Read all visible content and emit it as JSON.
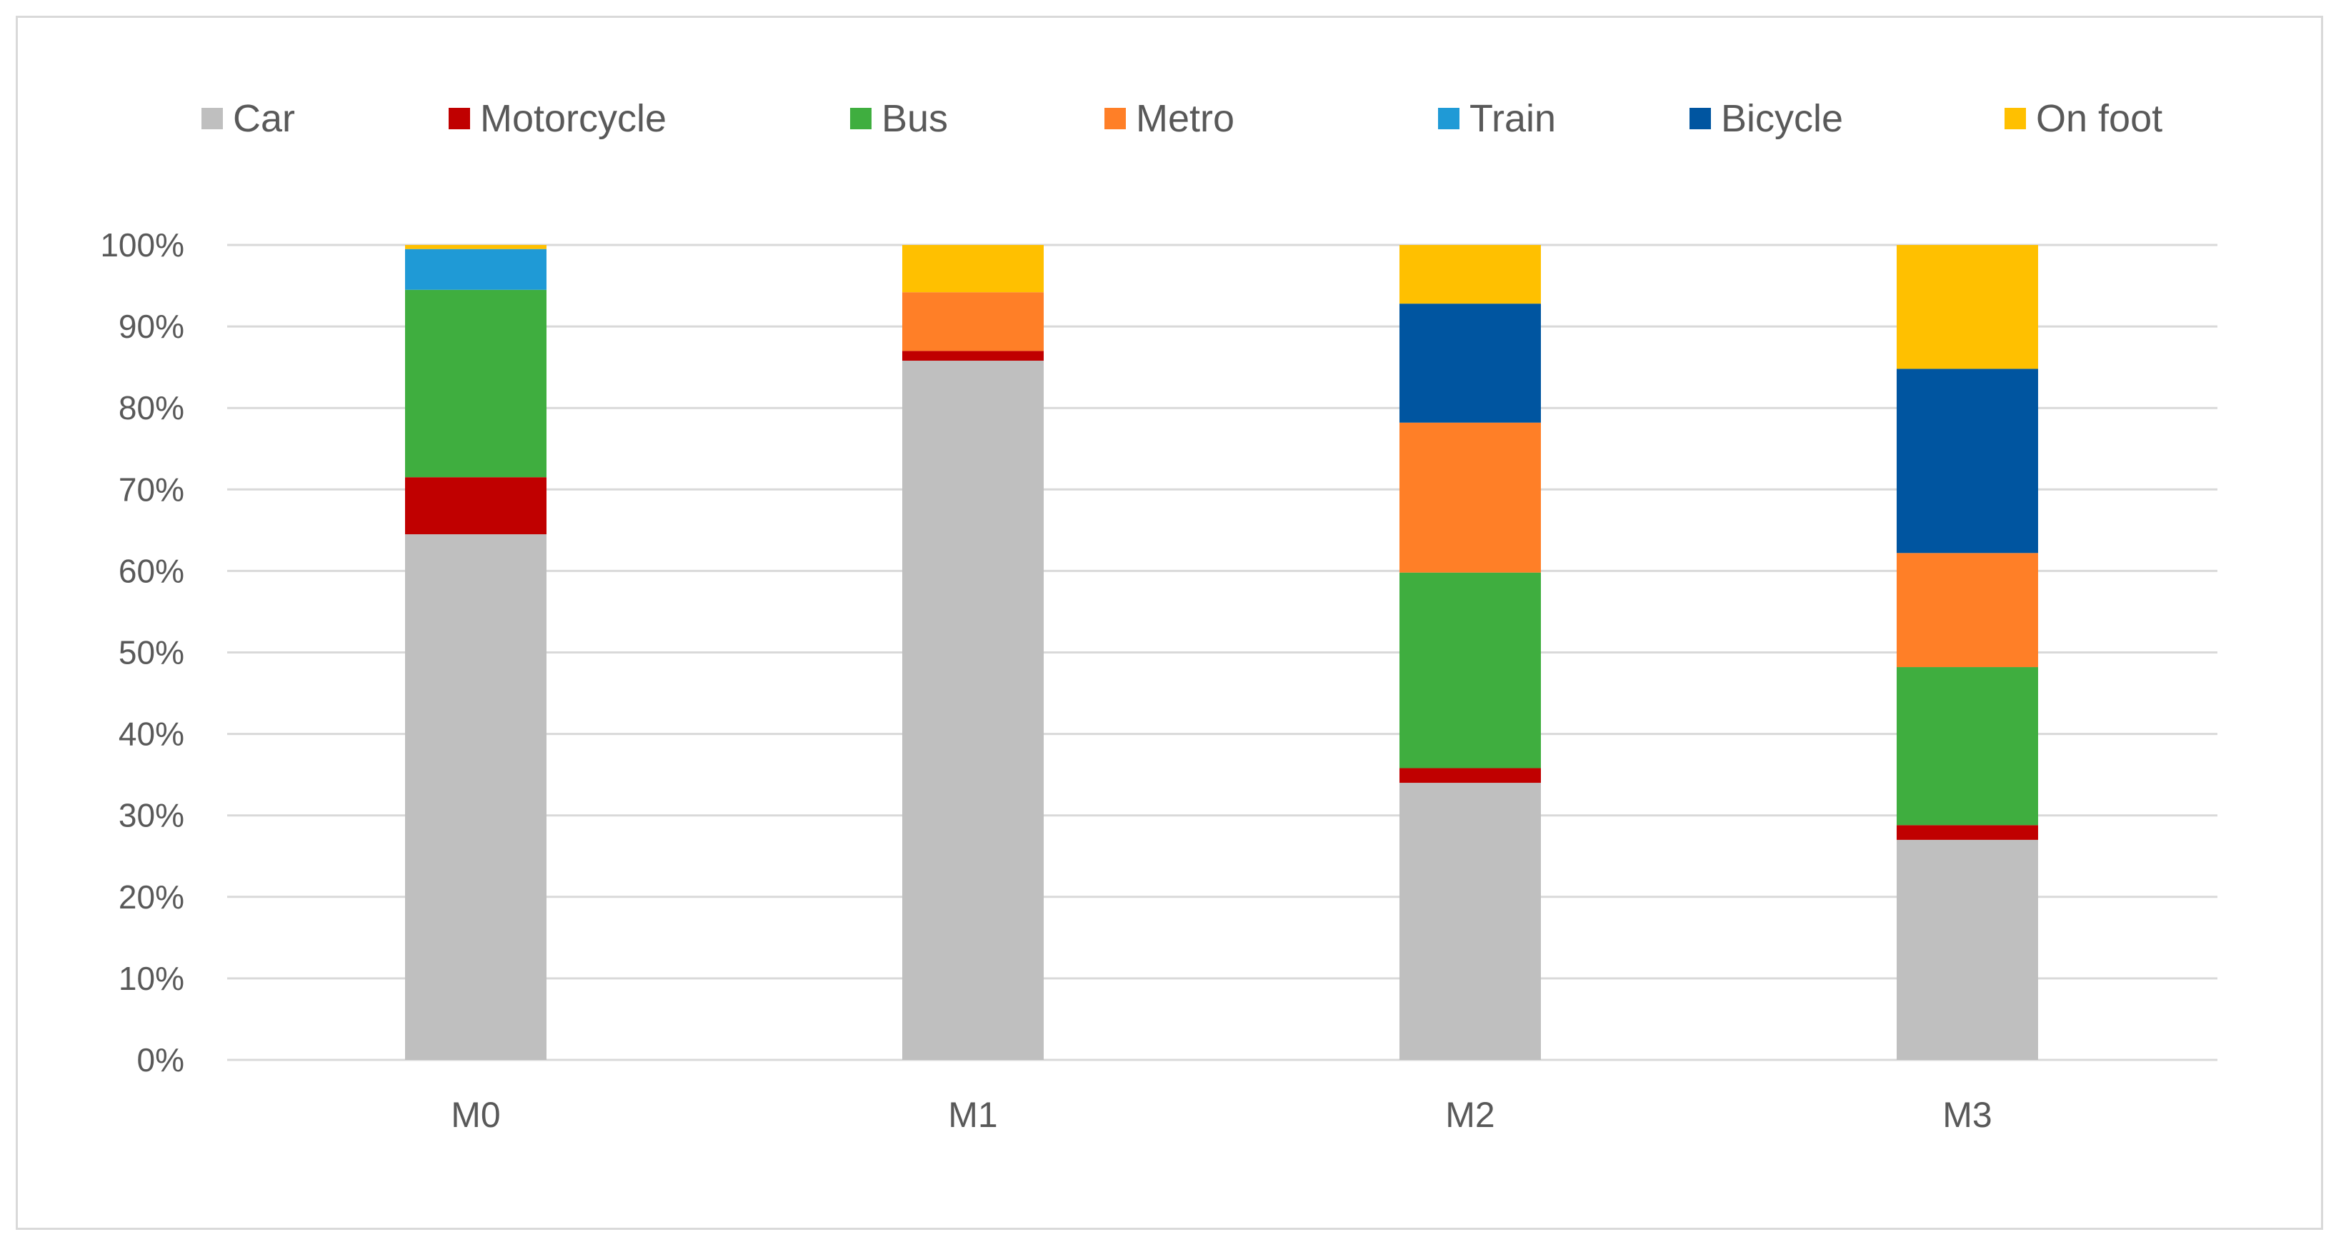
{
  "chart_data": {
    "type": "bar",
    "stacked": true,
    "percent": true,
    "categories": [
      "M0",
      "M1",
      "M2",
      "M3"
    ],
    "series": [
      {
        "name": "Car",
        "color": "#bfbfbf",
        "values": [
          64.5,
          85.8,
          34.0,
          27.0
        ]
      },
      {
        "name": "Motorcycle",
        "color": "#c00000",
        "values": [
          7.0,
          1.2,
          1.8,
          1.8
        ]
      },
      {
        "name": "Bus",
        "color": "#3fae3f",
        "values": [
          23.0,
          0.0,
          24.0,
          19.4
        ]
      },
      {
        "name": "Metro",
        "color": "#ff7f27",
        "values": [
          0.0,
          7.2,
          18.4,
          14.0
        ]
      },
      {
        "name": "Train",
        "color": "#1f9ad6",
        "values": [
          5.0,
          0.0,
          0.0,
          0.0
        ]
      },
      {
        "name": "Bicycle",
        "color": "#0055a0",
        "values": [
          0.0,
          0.0,
          14.6,
          22.6
        ]
      },
      {
        "name": "On foot",
        "color": "#ffc000",
        "values": [
          0.5,
          5.8,
          7.2,
          15.2
        ]
      }
    ],
    "y_ticks": [
      "0%",
      "10%",
      "20%",
      "30%",
      "40%",
      "50%",
      "60%",
      "70%",
      "80%",
      "90%",
      "100%"
    ],
    "ylim": [
      0,
      100
    ],
    "grid": true,
    "legend_position": "top",
    "title": "",
    "xlabel": "",
    "ylabel": ""
  }
}
